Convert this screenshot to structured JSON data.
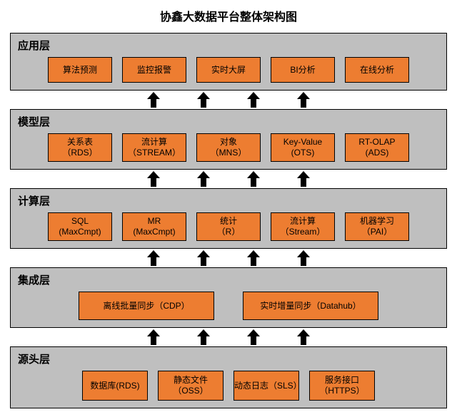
{
  "title": "协鑫大数据平台整体架构图",
  "title_fontsize": 16,
  "colors": {
    "layer_bg": "#bfbfbf",
    "box_bg": "#ed7d31",
    "box_border": "#000000",
    "layer_border": "#000000",
    "arrow": "#000000",
    "text": "#000000",
    "page_bg": "#ffffff"
  },
  "box_fontsize": 12,
  "label_fontsize": 15,
  "layers": [
    {
      "label": "应用层",
      "box_style": "small",
      "boxes": [
        {
          "text": "算法预测"
        },
        {
          "text": "监控报警"
        },
        {
          "text": "实时大屏"
        },
        {
          "text": "BI分析"
        },
        {
          "text": "在线分析"
        }
      ]
    },
    {
      "label": "模型层",
      "box_style": "tall",
      "boxes": [
        {
          "text": "关系表\n（RDS）"
        },
        {
          "text": "流计算\n（STREAM）"
        },
        {
          "text": "对象\n（MNS）"
        },
        {
          "text": "Key-Value\n(OTS)"
        },
        {
          "text": "RT-OLAP\n(ADS)"
        }
      ]
    },
    {
      "label": "计算层",
      "box_style": "tall",
      "boxes": [
        {
          "text": "SQL\n(MaxCmpt)"
        },
        {
          "text": "MR\n(MaxCmpt)"
        },
        {
          "text": "统计\n（R）"
        },
        {
          "text": "流计算\n（Stream）"
        },
        {
          "text": "机器学习\n（PAI）"
        }
      ]
    },
    {
      "label": "集成层",
      "box_style": "big",
      "row_style": "wide",
      "boxes": [
        {
          "text": "离线批量同步（CDP）"
        },
        {
          "text": "实时增量同步（Datahub）"
        }
      ]
    },
    {
      "label": "源头层",
      "box_style": "biggish",
      "boxes": [
        {
          "text": "数据库(RDS)"
        },
        {
          "text": "静态文件（OSS）"
        },
        {
          "text": "动态日志（SLS）"
        },
        {
          "text": "服务接口\n（HTTPS）"
        }
      ]
    }
  ],
  "arrow_count_between_layers": 4
}
